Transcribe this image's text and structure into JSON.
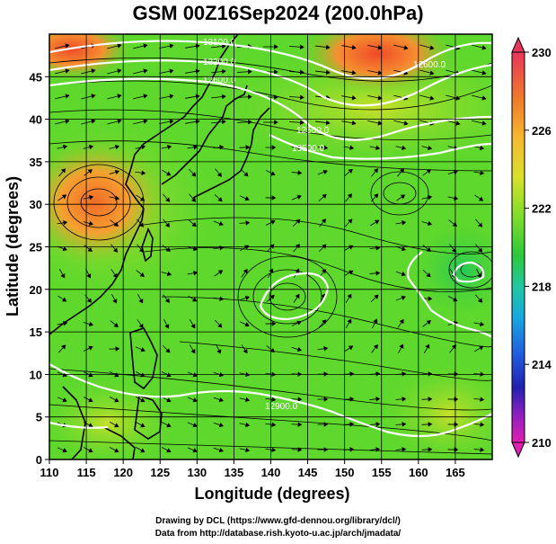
{
  "title": "GSM 00Z16Sep2024 (200.0hPa)",
  "x_axis": {
    "label": "Longitude (degrees)",
    "ticks": [
      "110",
      "115",
      "120",
      "125",
      "130",
      "135",
      "140",
      "145",
      "150",
      "155",
      "160",
      "165"
    ]
  },
  "y_axis": {
    "label": "Latitude  (degrees)",
    "ticks": [
      "0",
      "5",
      "10",
      "15",
      "20",
      "25",
      "30",
      "35",
      "40",
      "45"
    ]
  },
  "colorbar": {
    "ticks": [
      "230",
      "226",
      "222",
      "218",
      "214",
      "210"
    ],
    "colors": [
      "#e8365a",
      "#f07a2a",
      "#f5b830",
      "#d8e02a",
      "#7fdd2a",
      "#2ec83a",
      "#20c8a0",
      "#16a8e0",
      "#2060e0",
      "#2020b0",
      "#9020c0",
      "#e020b0"
    ]
  },
  "contour_labels": [
    "13100.0",
    "13200.0",
    "12600.0",
    "12500.0",
    "13500.0",
    "12600.0",
    "12900.0"
  ],
  "credits": {
    "line1": "Drawing by DCL (https://www.gfd-dennou.org/library/dcl/)",
    "line2": "Data from http://database.rish.kyoto-u.ac.jp/arch/jmadata/"
  },
  "map_data": {
    "extent": {
      "lon": [
        110,
        170
      ],
      "lat": [
        0,
        50
      ]
    },
    "palette": {
      "field_base": "#5ed82c",
      "warm": "#f08a2a",
      "hot": "#f26a28",
      "mid": "#c8e02a",
      "cool": "#30d04a"
    }
  }
}
